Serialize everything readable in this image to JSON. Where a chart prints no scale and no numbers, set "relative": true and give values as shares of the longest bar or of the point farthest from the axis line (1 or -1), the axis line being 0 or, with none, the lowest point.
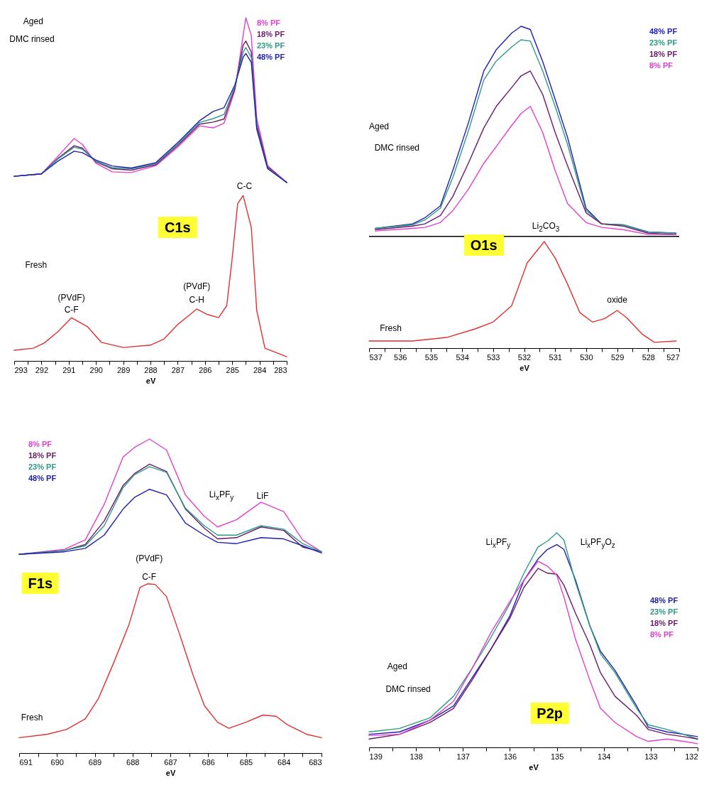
{
  "chart_data": [
    {
      "type": "line",
      "title": "C1s",
      "xlabel": "eV",
      "relative": true,
      "legend": "top right",
      "xlim": [
        293,
        283
      ],
      "xticks": [
        293,
        {
          "value": 292.5,
          "label": null
        },
        292,
        {
          "value": 291.5,
          "label": null
        },
        291,
        {
          "value": 290.5,
          "label": null
        },
        290,
        {
          "value": 289.5,
          "label": null
        },
        289,
        {
          "value": 288.5,
          "label": null
        },
        288,
        {
          "value": 287.5,
          "label": null
        },
        287,
        {
          "value": 286.5,
          "label": null
        },
        286,
        {
          "value": 285.5,
          "label": null
        },
        285,
        {
          "value": 284.5,
          "label": null
        },
        284,
        {
          "value": 283.5,
          "label": null
        },
        283
      ],
      "annotations": [
        "Aged",
        "DMC rinsed",
        "Fresh",
        "(PVdF)",
        "C-F",
        "(PVdF)",
        "C-H",
        "C-C"
      ],
      "series": [
        {
          "name": "8% PF",
          "color": "#e040d0",
          "x": [
            293,
            292,
            291.4,
            290.8,
            290.5,
            290,
            289.4,
            288.7,
            287.8,
            287,
            286.2,
            285.7,
            285.3,
            284.9,
            284.6,
            284.5,
            284.3,
            284.1,
            283.7,
            283
          ],
          "values": [
            0.538,
            0.545,
            0.596,
            0.648,
            0.631,
            0.576,
            0.551,
            0.549,
            0.569,
            0.623,
            0.685,
            0.679,
            0.693,
            0.789,
            0.948,
            1.0,
            0.948,
            0.706,
            0.569,
            0.52
          ]
        },
        {
          "name": "18% PF",
          "color": "#6a1b6a",
          "x": [
            293,
            292,
            291.4,
            290.8,
            290.5,
            290,
            289.4,
            288.7,
            287.8,
            287,
            286.2,
            285.7,
            285.3,
            284.9,
            284.6,
            284.5,
            284.3,
            284.1,
            283.7,
            283
          ],
          "values": [
            0.538,
            0.545,
            0.59,
            0.627,
            0.62,
            0.58,
            0.56,
            0.556,
            0.572,
            0.628,
            0.69,
            0.696,
            0.705,
            0.795,
            0.92,
            0.932,
            0.9,
            0.69,
            0.565,
            0.52
          ]
        },
        {
          "name": "23% PF",
          "color": "#2e9a86",
          "x": [
            293,
            292,
            291.4,
            290.8,
            290.5,
            290,
            289.4,
            288.7,
            287.8,
            287,
            286.2,
            285.7,
            285.3,
            284.9,
            284.6,
            284.5,
            284.3,
            284.1,
            283.7,
            283
          ],
          "values": [
            0.538,
            0.545,
            0.588,
            0.623,
            0.617,
            0.582,
            0.563,
            0.56,
            0.575,
            0.632,
            0.695,
            0.706,
            0.718,
            0.8,
            0.9,
            0.913,
            0.885,
            0.68,
            0.562,
            0.52
          ]
        },
        {
          "name": "48% PF",
          "color": "#2020b0",
          "x": [
            293,
            292,
            291.4,
            290.8,
            290.5,
            290,
            289.4,
            288.7,
            287.8,
            287,
            286.2,
            285.7,
            285.3,
            284.9,
            284.6,
            284.5,
            284.3,
            284.1,
            283.7,
            283
          ],
          "values": [
            0.538,
            0.545,
            0.582,
            0.611,
            0.607,
            0.585,
            0.568,
            0.562,
            0.578,
            0.636,
            0.7,
            0.727,
            0.738,
            0.805,
            0.885,
            0.896,
            0.87,
            0.675,
            0.56,
            0.52
          ]
        },
        {
          "color": "#e03030",
          "x": [
            293,
            292.3,
            291.9,
            291.4,
            290.9,
            290.3,
            289.8,
            289,
            288,
            287.5,
            287,
            286.3,
            285.9,
            285.5,
            285.2,
            285,
            284.8,
            284.6,
            284.3,
            284.1,
            283.8,
            283
          ],
          "values": [
            0.031,
            0.037,
            0.052,
            0.085,
            0.126,
            0.099,
            0.054,
            0.039,
            0.046,
            0.064,
            0.106,
            0.151,
            0.135,
            0.126,
            0.161,
            0.3,
            0.458,
            0.482,
            0.389,
            0.147,
            0.037,
            0.012
          ]
        }
      ]
    },
    {
      "type": "line",
      "title": "O1s",
      "xlabel": "eV",
      "relative": true,
      "legend": "top right",
      "xlim": [
        537,
        527
      ],
      "xticks": [
        537,
        {
          "value": 536.5,
          "label": null
        },
        536,
        {
          "value": 535.5,
          "label": null
        },
        535,
        {
          "value": 534.5,
          "label": null
        },
        534,
        {
          "value": 533.5,
          "label": null
        },
        533,
        {
          "value": 532.5,
          "label": null
        },
        532,
        {
          "value": 531.5,
          "label": null
        },
        531,
        {
          "value": 530.5,
          "label": null
        },
        530,
        {
          "value": 529.5,
          "label": null
        },
        529,
        {
          "value": 528.5,
          "label": null
        },
        528,
        {
          "value": 527.5,
          "label": null
        },
        527
      ],
      "ref_lines": [
        {
          "axis": "y",
          "value": 0.347,
          "color": "#000000"
        }
      ],
      "annotations": [
        "Aged",
        "DMC rinsed",
        "Fresh",
        "Li$_{2}$CO$_{3}$",
        "oxide"
      ],
      "series": [
        {
          "name": "48% PF",
          "color": "#2020b0",
          "x": [
            536.8,
            535.6,
            535.2,
            534.7,
            534.3,
            533.8,
            533.3,
            532.9,
            532.4,
            532.1,
            531.8,
            531.4,
            531,
            530.6,
            530,
            529.5,
            528.8,
            528,
            527.1
          ],
          "values": [
            0.372,
            0.386,
            0.405,
            0.442,
            0.552,
            0.699,
            0.861,
            0.927,
            0.979,
            1.0,
            0.99,
            0.89,
            0.773,
            0.655,
            0.434,
            0.386,
            0.383,
            0.361,
            0.357
          ]
        },
        {
          "name": "23% PF",
          "color": "#2e9a86",
          "x": [
            536.8,
            535.6,
            535.2,
            534.7,
            534.3,
            533.8,
            533.3,
            532.9,
            532.4,
            532.1,
            531.8,
            531.4,
            531,
            530.6,
            530,
            529.5,
            528.8,
            528,
            527.1
          ],
          "values": [
            0.372,
            0.383,
            0.398,
            0.435,
            0.53,
            0.674,
            0.833,
            0.892,
            0.936,
            0.958,
            0.954,
            0.861,
            0.751,
            0.633,
            0.427,
            0.386,
            0.383,
            0.361,
            0.357
          ]
        },
        {
          "name": "18% PF",
          "color": "#6a1b6a",
          "x": [
            536.8,
            535.6,
            535.2,
            534.7,
            534.3,
            533.8,
            533.3,
            532.9,
            532.4,
            532.1,
            531.8,
            531.4,
            531,
            530.6,
            530,
            529.5,
            528.8,
            528,
            527.1
          ],
          "values": [
            0.368,
            0.379,
            0.386,
            0.412,
            0.471,
            0.574,
            0.684,
            0.751,
            0.81,
            0.846,
            0.861,
            0.788,
            0.67,
            0.567,
            0.42,
            0.386,
            0.379,
            0.357,
            0.353
          ]
        },
        {
          "name": "8% PF",
          "color": "#e040d0",
          "x": [
            536.8,
            535.6,
            535.2,
            534.7,
            534.3,
            533.8,
            533.3,
            532.9,
            532.4,
            532.1,
            531.8,
            531.4,
            531,
            530.6,
            530,
            529.5,
            528.8,
            528,
            527.1
          ],
          "values": [
            0.364,
            0.372,
            0.375,
            0.39,
            0.427,
            0.493,
            0.574,
            0.626,
            0.692,
            0.729,
            0.751,
            0.67,
            0.552,
            0.449,
            0.39,
            0.375,
            0.368,
            0.353,
            0.353
          ]
        },
        {
          "color": "#e03030",
          "x": [
            537,
            535.6,
            534.5,
            533.6,
            533,
            532.4,
            531.9,
            531.35,
            531,
            530.6,
            530.2,
            529.8,
            529.4,
            529,
            528.7,
            528.2,
            527.8,
            527.1
          ],
          "values": [
            0.022,
            0.022,
            0.033,
            0.059,
            0.081,
            0.132,
            0.265,
            0.331,
            0.28,
            0.199,
            0.11,
            0.081,
            0.092,
            0.117,
            0.095,
            0.044,
            0.018,
            0.022
          ]
        }
      ]
    },
    {
      "type": "line",
      "title": "F1s",
      "xlabel": "eV",
      "relative": true,
      "legend": "top left",
      "xlim": [
        691,
        683
      ],
      "xticks": [
        691,
        {
          "value": 690.5,
          "label": null
        },
        690,
        {
          "value": 689.5,
          "label": null
        },
        689,
        {
          "value": 688.5,
          "label": null
        },
        688,
        {
          "value": 687.5,
          "label": null
        },
        687,
        {
          "value": 686.5,
          "label": null
        },
        686,
        {
          "value": 685.5,
          "label": null
        },
        685,
        {
          "value": 684.5,
          "label": null
        },
        684,
        {
          "value": 683.5,
          "label": null
        },
        683
      ],
      "annotations": [
        "Fresh",
        "(PVdF)",
        "C-F",
        "Li$_{x}$PF$_{y}$",
        "LiF"
      ],
      "series": [
        {
          "name": "8% PF",
          "color": "#e040d0",
          "x": [
            691,
            689.8,
            689.25,
            688.75,
            688.25,
            687.95,
            687.55,
            687.1,
            686.6,
            686.1,
            685.75,
            685.25,
            684.6,
            684,
            683.5,
            683
          ],
          "values": [
            0.633,
            0.649,
            0.679,
            0.792,
            0.943,
            0.973,
            1.0,
            0.965,
            0.822,
            0.754,
            0.72,
            0.743,
            0.799,
            0.769,
            0.679,
            0.641
          ]
        },
        {
          "name": "18% PF",
          "color": "#6a1b6a",
          "x": [
            691,
            689.8,
            689.25,
            688.75,
            688.25,
            687.95,
            687.55,
            687.1,
            686.6,
            686.1,
            685.75,
            685.25,
            684.6,
            684,
            683.5,
            683
          ],
          "values": [
            0.633,
            0.645,
            0.664,
            0.739,
            0.852,
            0.89,
            0.92,
            0.897,
            0.777,
            0.716,
            0.682,
            0.686,
            0.72,
            0.709,
            0.656,
            0.641
          ]
        },
        {
          "name": "23% PF",
          "color": "#2e9a86",
          "x": [
            691,
            689.8,
            689.25,
            688.75,
            688.25,
            687.95,
            687.55,
            687.1,
            686.6,
            686.1,
            685.75,
            685.25,
            684.6,
            684,
            683.5,
            683
          ],
          "values": [
            0.633,
            0.645,
            0.66,
            0.724,
            0.845,
            0.886,
            0.912,
            0.894,
            0.78,
            0.724,
            0.694,
            0.694,
            0.724,
            0.713,
            0.667,
            0.641
          ]
        },
        {
          "name": "48% PF",
          "color": "#2020b0",
          "x": [
            691,
            689.8,
            689.25,
            688.75,
            688.25,
            687.95,
            687.55,
            687.1,
            686.6,
            686.1,
            685.75,
            685.25,
            684.6,
            684,
            683.5,
            683
          ],
          "values": [
            0.633,
            0.641,
            0.652,
            0.694,
            0.777,
            0.814,
            0.84,
            0.822,
            0.732,
            0.694,
            0.671,
            0.667,
            0.686,
            0.682,
            0.66,
            0.637
          ]
        },
        {
          "color": "#e03030",
          "x": [
            691,
            690.25,
            689.75,
            689.25,
            688.9,
            688.5,
            688.1,
            687.8,
            687.6,
            687.4,
            687.1,
            686.75,
            686.4,
            686.1,
            685.75,
            685.45,
            685,
            684.55,
            684.2,
            683.9,
            683.4,
            683
          ],
          "values": [
            0.049,
            0.06,
            0.075,
            0.109,
            0.174,
            0.287,
            0.407,
            0.528,
            0.539,
            0.537,
            0.498,
            0.377,
            0.249,
            0.151,
            0.098,
            0.079,
            0.098,
            0.121,
            0.117,
            0.09,
            0.06,
            0.049
          ]
        }
      ]
    },
    {
      "type": "line",
      "title": "P2p",
      "xlabel": "eV",
      "relative": true,
      "legend": "right",
      "xlim": [
        139,
        132
      ],
      "xticks": [
        139,
        {
          "value": 138.5,
          "label": null
        },
        138,
        {
          "value": 137.5,
          "label": null
        },
        137,
        {
          "value": 136.5,
          "label": null
        },
        136,
        {
          "value": 135.5,
          "label": null
        },
        135,
        {
          "value": 134.5,
          "label": null
        },
        134,
        {
          "value": 133.5,
          "label": null
        },
        133,
        {
          "value": 132.5,
          "label": null
        },
        132
      ],
      "annotations": [
        "Aged",
        "DMC rinsed",
        "Li$_{x}$PF$_{y}$",
        "Li$_{x}$PF$_{y}$O$_{z}$"
      ],
      "series": [
        {
          "name": "48% PF",
          "color": "#2020b0",
          "x": [
            139,
            138.35,
            137.7,
            137.2,
            136.8,
            136.4,
            136,
            135.7,
            135.4,
            135.2,
            135,
            134.85,
            134.6,
            134.3,
            134.07,
            133.76,
            133.3,
            133.05,
            132.65,
            132.3,
            132
          ],
          "values": [
            0.061,
            0.072,
            0.127,
            0.193,
            0.326,
            0.459,
            0.613,
            0.779,
            0.878,
            0.923,
            0.945,
            0.923,
            0.779,
            0.569,
            0.448,
            0.359,
            0.193,
            0.094,
            0.072,
            0.061,
            0.05
          ]
        },
        {
          "name": "23% PF",
          "color": "#2e9a86",
          "x": [
            139,
            138.35,
            137.7,
            137.2,
            136.8,
            136.4,
            136,
            135.7,
            135.4,
            135.2,
            135,
            134.85,
            134.6,
            134.3,
            134.07,
            133.76,
            133.3,
            133.05,
            132.65,
            132.3,
            132
          ],
          "values": [
            0.072,
            0.088,
            0.138,
            0.238,
            0.37,
            0.514,
            0.669,
            0.812,
            0.934,
            0.961,
            1.0,
            0.967,
            0.768,
            0.569,
            0.436,
            0.348,
            0.182,
            0.105,
            0.083,
            0.061,
            0.039
          ]
        },
        {
          "name": "18% PF",
          "color": "#6a1b6a",
          "x": [
            139,
            138.35,
            137.7,
            137.2,
            136.8,
            136.4,
            136,
            135.7,
            135.4,
            135.2,
            135,
            134.85,
            134.6,
            134.3,
            134.07,
            133.76,
            133.3,
            133.05,
            132.65,
            132.3,
            132
          ],
          "values": [
            0.039,
            0.061,
            0.116,
            0.182,
            0.315,
            0.459,
            0.602,
            0.746,
            0.834,
            0.812,
            0.807,
            0.757,
            0.624,
            0.481,
            0.348,
            0.238,
            0.149,
            0.083,
            0.061,
            0.05,
            0.039
          ]
        },
        {
          "name": "8% PF",
          "color": "#e040d0",
          "x": [
            139,
            138.35,
            137.7,
            137.2,
            136.8,
            136.4,
            136,
            135.7,
            135.4,
            135.2,
            135,
            134.85,
            134.6,
            134.3,
            134.07,
            133.76,
            133.3,
            133.05,
            132.65,
            132.3,
            132
          ],
          "values": [
            0.055,
            0.061,
            0.127,
            0.215,
            0.37,
            0.536,
            0.68,
            0.779,
            0.867,
            0.845,
            0.801,
            0.702,
            0.503,
            0.315,
            0.182,
            0.116,
            0.05,
            0.028,
            0.039,
            0.028,
            0.017
          ]
        }
      ]
    }
  ]
}
